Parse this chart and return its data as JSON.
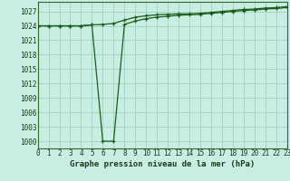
{
  "title": "Graphe pression niveau de la mer (hPa)",
  "bg_color": "#c8eee4",
  "plot_bg_color": "#c8eee4",
  "line_color": "#1a5c1a",
  "grid_color": "#a0cfc0",
  "axis_color": "#336633",
  "x_ticks": [
    0,
    1,
    2,
    3,
    4,
    5,
    6,
    7,
    8,
    9,
    10,
    11,
    12,
    13,
    14,
    15,
    16,
    17,
    18,
    19,
    20,
    21,
    22,
    23
  ],
  "y_ticks": [
    1000,
    1003,
    1006,
    1009,
    1012,
    1015,
    1018,
    1021,
    1024,
    1027
  ],
  "ylim": [
    998.5,
    1029.0
  ],
  "xlim": [
    0,
    23
  ],
  "series1_x": [
    0,
    1,
    2,
    3,
    4,
    5,
    6,
    7,
    8,
    9,
    10,
    11,
    12,
    13,
    14,
    15,
    16,
    17,
    18,
    19,
    20,
    21,
    22,
    23
  ],
  "series1_y": [
    1024.0,
    1024.0,
    1024.0,
    1024.0,
    1024.0,
    1024.2,
    1024.3,
    1024.5,
    1025.2,
    1025.8,
    1026.1,
    1026.3,
    1026.4,
    1026.5,
    1026.5,
    1026.6,
    1026.8,
    1027.0,
    1027.2,
    1027.4,
    1027.5,
    1027.7,
    1027.8,
    1028.0
  ],
  "series2_x": [
    0,
    1,
    2,
    3,
    4,
    5,
    6,
    7,
    8,
    9,
    10,
    11,
    12,
    13,
    14,
    15,
    16,
    17,
    18,
    19,
    20,
    21,
    22,
    23
  ],
  "series2_y": [
    1024.0,
    1024.0,
    1024.0,
    1024.0,
    1024.0,
    1024.2,
    1000.0,
    1000.0,
    1024.3,
    1025.0,
    1025.5,
    1025.8,
    1026.0,
    1026.2,
    1026.3,
    1026.4,
    1026.6,
    1026.8,
    1027.0,
    1027.2,
    1027.3,
    1027.5,
    1027.6,
    1027.8
  ],
  "tick_fontsize": 5.5,
  "xlabel_fontsize": 6.5,
  "tick_color": "#1a3a1a",
  "xlabel_color": "#1a3a1a"
}
